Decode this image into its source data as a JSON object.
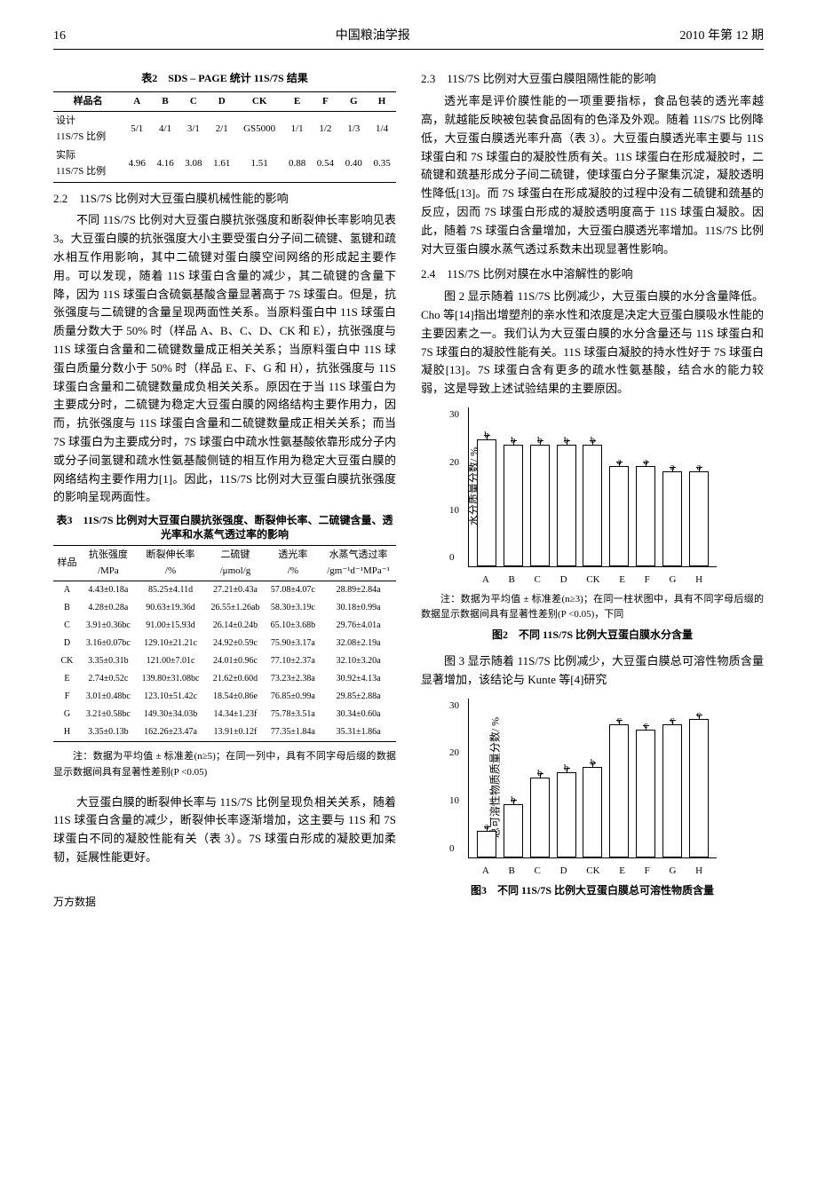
{
  "header": {
    "page_number": "16",
    "journal": "中国粮油学报",
    "issue": "2010 年第 12 期"
  },
  "table2": {
    "title": "表2　SDS – PAGE 统计 11S/7S 结果",
    "columns": [
      "样品名",
      "A",
      "B",
      "C",
      "D",
      "CK",
      "E",
      "F",
      "G",
      "H"
    ],
    "rows": [
      [
        "设计\n11S/7S 比例",
        "5/1",
        "4/1",
        "3/1",
        "2/1",
        "GS5000",
        "1/1",
        "1/2",
        "1/3",
        "1/4"
      ],
      [
        "实际\n11S/7S 比例",
        "4.96",
        "4.16",
        "3.08",
        "1.61",
        "1.51",
        "0.88",
        "0.54",
        "0.40",
        "0.35"
      ]
    ]
  },
  "sec22": {
    "heading": "2.2　11S/7S 比例对大豆蛋白膜机械性能的影响",
    "para": "不同 11S/7S 比例对大豆蛋白膜抗张强度和断裂伸长率影响见表 3。大豆蛋白膜的抗张强度大小主要受蛋白分子间二硫键、氢键和疏水相互作用影响，其中二硫键对蛋白膜空间网络的形成起主要作用。可以发现，随着 11S 球蛋白含量的减少，其二硫键的含量下降，因为 11S 球蛋白含硫氨基酸含量显著高于 7S 球蛋白。但是，抗张强度与二硫键的含量呈现两面性关系。当原料蛋白中 11S 球蛋白质量分数大于 50% 时（样品 A、B、C、D、CK 和 E），抗张强度与 11S 球蛋白含量和二硫键数量成正相关关系；当原料蛋白中 11S 球蛋白质量分数小于 50% 时（样品 E、F、G 和 H），抗张强度与 11S 球蛋白含量和二硫键数量成负相关关系。原因在于当 11S 球蛋白为主要成分时，二硫键为稳定大豆蛋白膜的网络结构主要作用力，因而，抗张强度与 11S 球蛋白含量和二硫键数量成正相关关系；而当 7S 球蛋白为主要成分时，7S 球蛋白中疏水性氨基酸依靠形成分子内或分子间氢键和疏水性氨基酸侧链的相互作用为稳定大豆蛋白膜的网络结构主要作用力[1]。因此，11S/7S 比例对大豆蛋白膜抗张强度的影响呈现两面性。"
  },
  "table3": {
    "title": "表3　11S/7S 比例对大豆蛋白膜抗张强度、断裂伸长率、二硫键含量、透光率和水蒸气透过率的影响",
    "columns": [
      "样品",
      "抗张强度\n/MPa",
      "断裂伸长率\n/%",
      "二硫键\n/μmol/g",
      "透光率\n/%",
      "水蒸气透过率\n/gm⁻¹d⁻¹MPa⁻¹"
    ],
    "rows": [
      [
        "A",
        "4.43±0.18a",
        "85.25±4.11d",
        "27.21±0.43a",
        "57.08±4.07c",
        "28.89±2.84a"
      ],
      [
        "B",
        "4.28±0.28a",
        "90.63±19.36d",
        "26.55±1.26ab",
        "58.30±3.19c",
        "30.18±0.99a"
      ],
      [
        "C",
        "3.91±0.36bc",
        "91.00±15.93d",
        "26.14±0.24b",
        "65.10±3.68b",
        "29.76±4.01a"
      ],
      [
        "D",
        "3.16±0.07bc",
        "129.10±21.21c",
        "24.92±0.59c",
        "75.90±3.17a",
        "32.08±2.19a"
      ],
      [
        "CK",
        "3.35±0.31b",
        "121.00±7.01c",
        "24.01±0.96c",
        "77.10±2.37a",
        "32.10±3.20a"
      ],
      [
        "E",
        "2.74±0.52c",
        "139.80±31.08bc",
        "21.62±0.60d",
        "73.23±2.38a",
        "30.92±4.13a"
      ],
      [
        "F",
        "3.01±0.48bc",
        "123.10±51.42c",
        "18.54±0.86e",
        "76.85±0.99a",
        "29.85±2.88a"
      ],
      [
        "G",
        "3.21±0.58bc",
        "149.30±34.03b",
        "14.34±1.23f",
        "75.78±3.51a",
        "30.34±0.60a"
      ],
      [
        "H",
        "3.35±0.13b",
        "162.26±23.47a",
        "13.91±0.12f",
        "77.35±1.84a",
        "35.31±1.86a"
      ]
    ],
    "note": "注：数据为平均值 ± 标准差(n≥5)；在同一列中，具有不同字母后缀的数据显示数据间具有显著性差别(P <0.05)"
  },
  "para_bottom_left": "大豆蛋白膜的断裂伸长率与 11S/7S 比例呈现负相关关系，随着 11S 球蛋白含量的减少，断裂伸长率逐渐增加，这主要与 11S 和 7S 球蛋白不同的凝胶性能有关（表 3）。7S 球蛋白形成的凝胶更加柔韧，延展性能更好。",
  "sec23": {
    "heading": "2.3　11S/7S 比例对大豆蛋白膜阻隔性能的影响",
    "para": "透光率是评价膜性能的一项重要指标，食品包装的透光率越高，就越能反映被包装食品固有的色泽及外观。随着 11S/7S 比例降低，大豆蛋白膜透光率升高（表 3）。大豆蛋白膜透光率主要与 11S 球蛋白和 7S 球蛋白的凝胶性质有关。11S 球蛋白在形成凝胶时，二硫键和巯基形成分子间二硫键，使球蛋白分子聚集沉淀，凝胶透明性降低[13]。而 7S 球蛋白在形成凝胶的过程中没有二硫键和巯基的反应，因而 7S 球蛋白形成的凝胶透明度高于 11S 球蛋白凝胶。因此，随着 7S 球蛋白含量增加，大豆蛋白膜透光率增加。11S/7S 比例对大豆蛋白膜水蒸气透过系数未出现显著性影响。"
  },
  "sec24": {
    "heading": "2.4　11S/7S 比例对膜在水中溶解性的影响",
    "para": "图 2 显示随着 11S/7S 比例减少，大豆蛋白膜的水分含量降低。Cho 等[14]指出增塑剂的亲水性和浓度是决定大豆蛋白膜吸水性能的主要因素之一。我们认为大豆蛋白膜的水分含量还与 11S 球蛋白和 7S 球蛋白的凝胶性能有关。11S 球蛋白凝胶的持水性好于 7S 球蛋白凝胶[13]。7S 球蛋白含有更多的疏水性氨基酸，结合水的能力较弱，这是导致上述试验结果的主要原因。"
  },
  "fig2": {
    "type": "bar",
    "y_label": "水分质量分数/ %",
    "ylim": [
      0,
      30
    ],
    "ytick_step": 10,
    "categories": [
      "A",
      "B",
      "C",
      "D",
      "CK",
      "E",
      "F",
      "G",
      "H"
    ],
    "values": [
      24,
      23,
      23,
      23,
      23,
      19,
      19,
      18,
      18
    ],
    "sig_labels": [
      "b",
      "b",
      "b",
      "b",
      "b",
      "a",
      "a",
      "a",
      "a"
    ],
    "bar_color": "#ffffff",
    "border_color": "#000000",
    "note": "注：数据为平均值 ± 标准差(n≥3)；在同一柱状图中，具有不同字母后缀的数据显示数据间具有显著性差别(P <0.05)，下同",
    "caption": "图2　不同 11S/7S 比例大豆蛋白膜水分含量"
  },
  "para_fig3_intro": "图 3 显示随着 11S/7S 比例减少，大豆蛋白膜总可溶性物质含量显著增加，该结论与 Kunte 等[4]研究",
  "fig3": {
    "type": "bar",
    "y_label": "总可溶性物质质量分数/ %",
    "ylim": [
      0,
      30
    ],
    "ytick_step": 10,
    "categories": [
      "A",
      "B",
      "C",
      "D",
      "CK",
      "E",
      "F",
      "G",
      "H"
    ],
    "values": [
      5,
      10,
      15,
      16,
      17,
      25,
      24,
      25,
      26
    ],
    "sig_labels": [
      "a",
      "b",
      "b",
      "b",
      "b",
      "c",
      "c",
      "c",
      "c"
    ],
    "bar_color": "#ffffff",
    "border_color": "#000000",
    "caption": "图3　不同 11S/7S 比例大豆蛋白膜总可溶性物质含量"
  },
  "footer": "万方数据"
}
